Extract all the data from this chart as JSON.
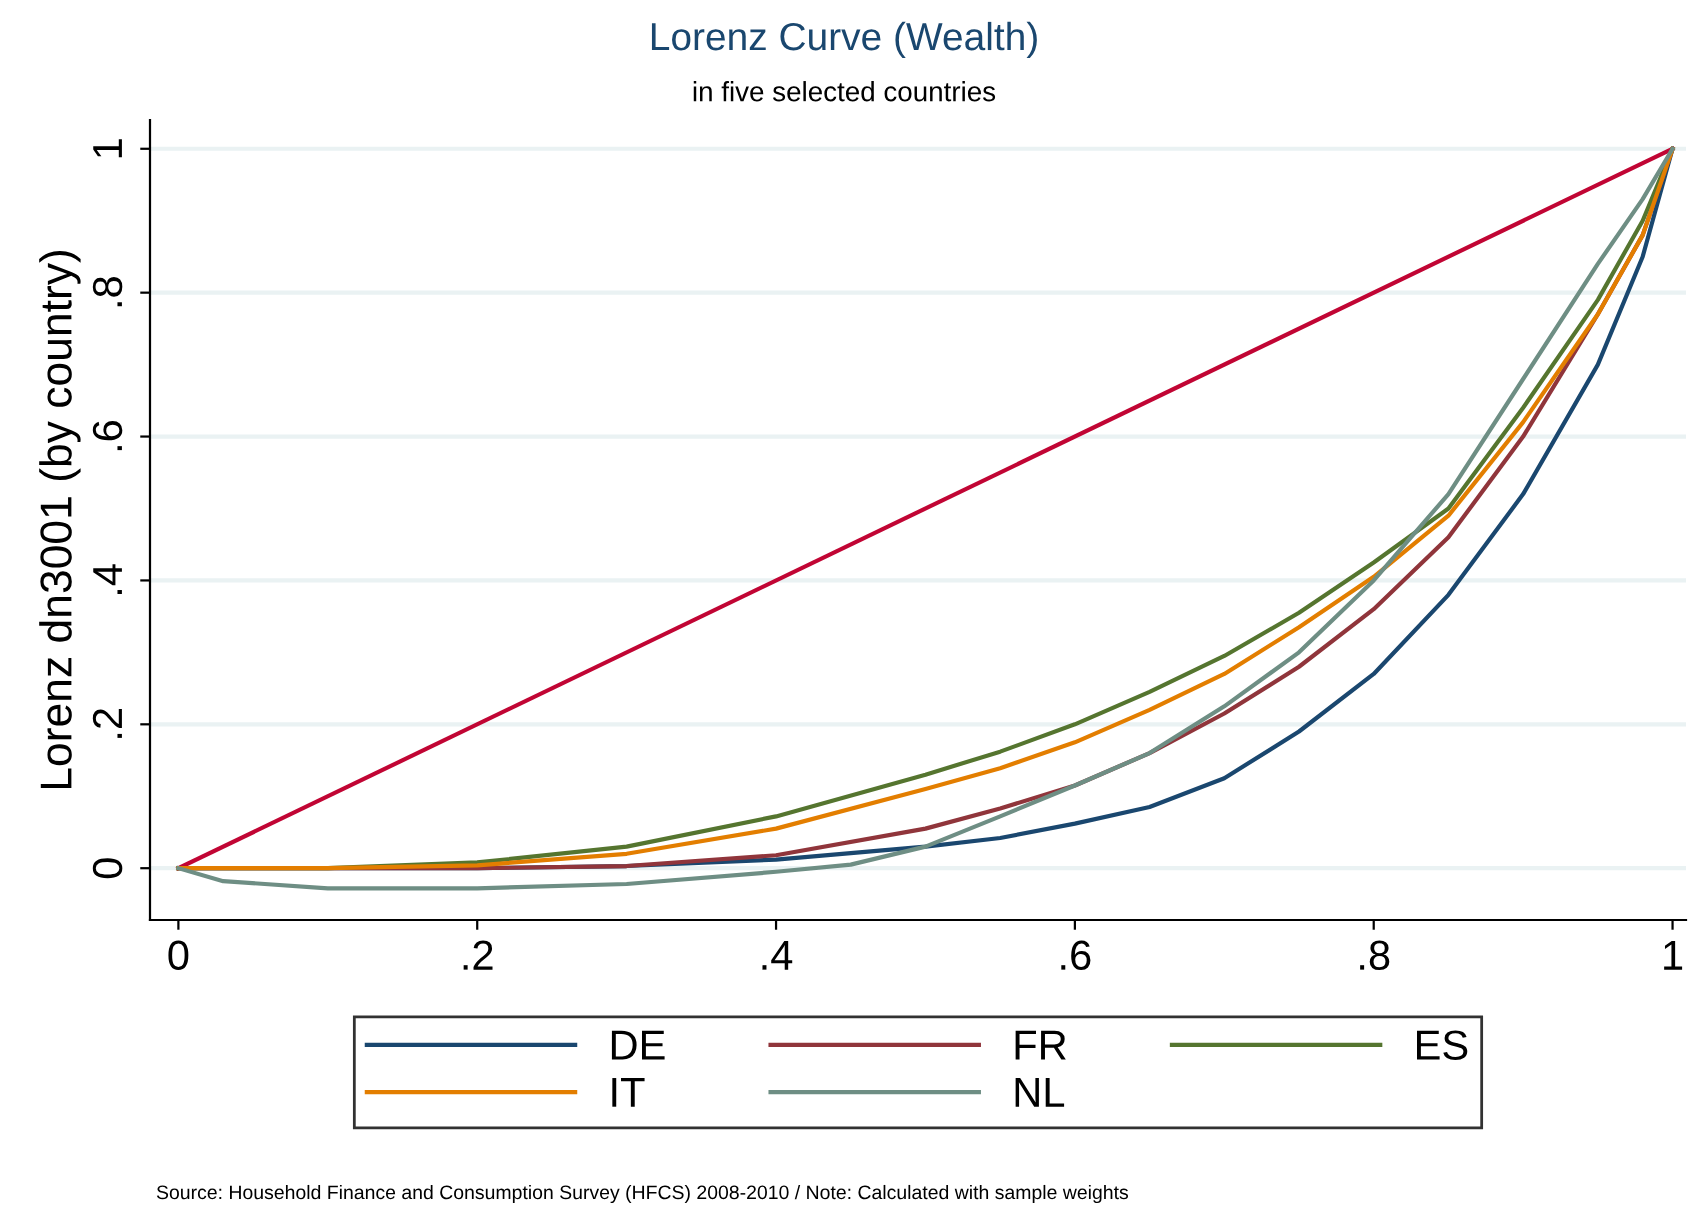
{
  "chart_data": {
    "type": "line",
    "title": "Lorenz Curve (Wealth)",
    "subtitle": "in five selected countries",
    "ylabel": "Lorenz dn3001 (by country)",
    "annotations": [
      "Source: Household Finance and Consumption Survey (HFCS) 2008-2010 / Note: Calculated with sample weights"
    ],
    "xlim": [
      -0.019,
      1.009
    ],
    "ylim": [
      -0.072,
      1.04
    ],
    "xticks": [
      0,
      {
        "value": 0.2,
        "label": ".2"
      },
      {
        "value": 0.4,
        "label": ".4"
      },
      {
        "value": 0.6,
        "label": ".6"
      },
      {
        "value": 0.8,
        "label": ".8"
      },
      1
    ],
    "yticks": [
      0,
      {
        "value": 0.2,
        "label": ".2"
      },
      {
        "value": 0.4,
        "label": ".4"
      },
      {
        "value": 0.6,
        "label": ".6"
      },
      {
        "value": 0.8,
        "label": ".8"
      },
      1
    ],
    "grid": "y",
    "legend": "bottom",
    "marker": "none",
    "line_style": "solid",
    "series": [
      {
        "color": "#c10534",
        "x": [
          0,
          1
        ],
        "values": [
          0,
          1
        ]
      },
      {
        "name": "DE",
        "color": "#1a476f",
        "x": [
          0,
          0.1,
          0.2,
          0.3,
          0.4,
          0.5,
          0.55,
          0.6,
          0.65,
          0.7,
          0.75,
          0.8,
          0.85,
          0.9,
          0.95,
          0.98,
          1
        ],
        "values": [
          0,
          0,
          0,
          0.003,
          0.012,
          0.03,
          0.042,
          0.062,
          0.085,
          0.125,
          0.19,
          0.27,
          0.38,
          0.52,
          0.7,
          0.85,
          1
        ]
      },
      {
        "name": "FR",
        "color": "#90353b",
        "x": [
          0,
          0.1,
          0.2,
          0.3,
          0.4,
          0.5,
          0.55,
          0.6,
          0.65,
          0.7,
          0.75,
          0.8,
          0.85,
          0.9,
          0.95,
          0.98,
          1
        ],
        "values": [
          0,
          0,
          0,
          0.003,
          0.018,
          0.055,
          0.083,
          0.115,
          0.16,
          0.215,
          0.28,
          0.36,
          0.46,
          0.6,
          0.77,
          0.88,
          1
        ]
      },
      {
        "name": "ES",
        "color": "#55752f",
        "x": [
          0,
          0.1,
          0.2,
          0.3,
          0.4,
          0.5,
          0.55,
          0.6,
          0.65,
          0.7,
          0.75,
          0.8,
          0.85,
          0.9,
          0.95,
          0.98,
          1
        ],
        "values": [
          0,
          0,
          0.008,
          0.03,
          0.072,
          0.13,
          0.162,
          0.2,
          0.245,
          0.295,
          0.355,
          0.425,
          0.5,
          0.64,
          0.79,
          0.9,
          1
        ]
      },
      {
        "name": "IT",
        "color": "#e37e00",
        "x": [
          0,
          0.1,
          0.2,
          0.3,
          0.4,
          0.5,
          0.55,
          0.6,
          0.65,
          0.7,
          0.75,
          0.8,
          0.85,
          0.9,
          0.95,
          0.98,
          1
        ],
        "values": [
          0,
          0,
          0.004,
          0.02,
          0.055,
          0.11,
          0.139,
          0.175,
          0.22,
          0.27,
          0.335,
          0.405,
          0.49,
          0.62,
          0.77,
          0.88,
          1
        ]
      },
      {
        "name": "NL",
        "color": "#6e8e84",
        "x": [
          0,
          0.03,
          0.1,
          0.2,
          0.3,
          0.4,
          0.45,
          0.5,
          0.55,
          0.6,
          0.65,
          0.7,
          0.75,
          0.8,
          0.85,
          0.9,
          0.95,
          0.98,
          1
        ],
        "values": [
          0,
          -0.018,
          -0.028,
          -0.028,
          -0.022,
          -0.005,
          0.005,
          0.03,
          0.072,
          0.115,
          0.16,
          0.225,
          0.3,
          0.4,
          0.52,
          0.68,
          0.84,
          0.93,
          1
        ]
      }
    ]
  }
}
